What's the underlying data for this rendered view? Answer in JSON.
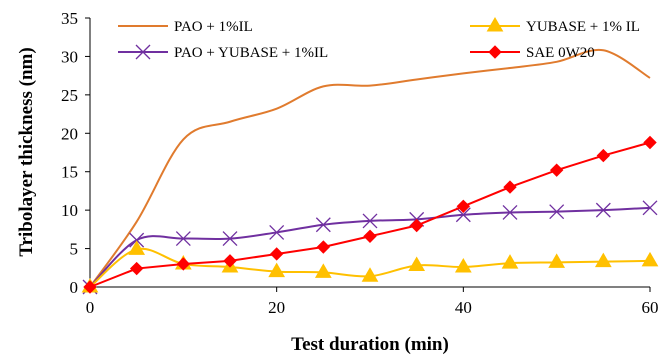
{
  "chart_data": {
    "type": "line",
    "xlabel": "Test duration (min)",
    "ylabel": "Tribolayer thickness (nm)",
    "xlim": [
      0,
      60
    ],
    "ylim": [
      0,
      35
    ],
    "xticks": [
      0,
      20,
      40,
      60
    ],
    "yticks": [
      0,
      5,
      10,
      15,
      20,
      25,
      30,
      35
    ],
    "grid": false,
    "legend": "top, two columns",
    "series": [
      {
        "name": "PAO + 1%IL",
        "color": "#E07B2E",
        "marker": "none",
        "smooth": true,
        "x": [
          0,
          5,
          10,
          15,
          20,
          25,
          30,
          35,
          40,
          45,
          50,
          55,
          60
        ],
        "y": [
          0,
          8.5,
          19.2,
          21.5,
          23.2,
          26.1,
          26.2,
          27.0,
          27.8,
          28.5,
          29.3,
          30.8,
          27.2
        ]
      },
      {
        "name": "YUBASE + 1% IL",
        "color": "#FFC000",
        "marker": "triangle",
        "smooth": true,
        "x": [
          0,
          5,
          10,
          15,
          20,
          25,
          30,
          35,
          40,
          45,
          50,
          55,
          60
        ],
        "y": [
          0,
          4.9,
          3.0,
          2.6,
          2.0,
          1.9,
          1.4,
          2.8,
          2.6,
          3.1,
          3.2,
          3.3,
          3.4
        ]
      },
      {
        "name": "PAO + YUBASE + 1%IL",
        "color": "#7030A0",
        "marker": "x",
        "smooth": true,
        "x": [
          0,
          5,
          10,
          15,
          20,
          25,
          30,
          35,
          40,
          45,
          50,
          55,
          60
        ],
        "y": [
          0,
          6.1,
          6.3,
          6.3,
          7.1,
          8.1,
          8.6,
          8.8,
          9.4,
          9.7,
          9.8,
          10.0,
          10.3
        ]
      },
      {
        "name": "SAE 0W20",
        "color": "#FF0000",
        "marker": "diamond",
        "smooth": false,
        "x": [
          0,
          5,
          10,
          15,
          20,
          25,
          30,
          35,
          40,
          45,
          50,
          55,
          60
        ],
        "y": [
          0,
          2.4,
          3.0,
          3.4,
          4.3,
          5.2,
          6.6,
          8.0,
          10.5,
          13.0,
          15.2,
          17.1,
          18.8
        ]
      }
    ]
  }
}
